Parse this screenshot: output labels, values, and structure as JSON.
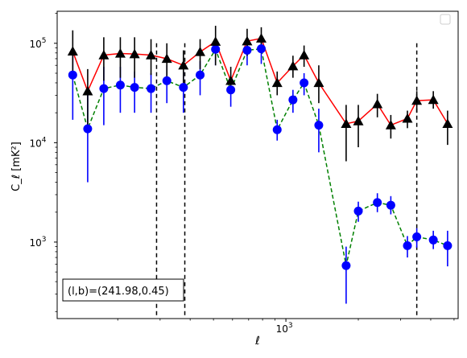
{
  "chart_data": {
    "type": "scatter",
    "title": "",
    "xlabel": "ℓ",
    "ylabel": "C_ℓ  [mK²]",
    "xscale": "log",
    "yscale": "log",
    "xlim": [
      112,
      5200
    ],
    "ylim": [
      170,
      210000
    ],
    "x_major_ticks": [
      {
        "value": 1000,
        "base": "10",
        "exp": "3"
      }
    ],
    "y_major_ticks": [
      {
        "value": 1000,
        "base": "10",
        "exp": "3"
      },
      {
        "value": 10000,
        "base": "10",
        "exp": "4"
      },
      {
        "value": 100000,
        "base": "10",
        "exp": "5"
      }
    ],
    "legend": {
      "location": "top-right",
      "entries": []
    },
    "vlines": [
      {
        "x": 290,
        "style": "dashed",
        "color": "#000000"
      },
      {
        "x": 380,
        "style": "dashed",
        "color": "#000000"
      },
      {
        "x": 3500,
        "style": "dashed",
        "color": "#000000"
      }
    ],
    "annotation": {
      "text": "(l,b)=(241.98,0.45)",
      "location": "bottom-left"
    },
    "series": [
      {
        "marker": "triangle",
        "color": "#000000",
        "line_color": "#ff0000",
        "line_style": "solid",
        "errorbar_color": "#000000",
        "points": [
          {
            "x": 130,
            "y": 83000,
            "ylo": 45000,
            "yhi": 135000
          },
          {
            "x": 150,
            "y": 33000,
            "ylo": 15000,
            "yhi": 55000
          },
          {
            "x": 175,
            "y": 76000,
            "ylo": 42000,
            "yhi": 115000
          },
          {
            "x": 205,
            "y": 79000,
            "ylo": 45000,
            "yhi": 115000
          },
          {
            "x": 235,
            "y": 78000,
            "ylo": 45000,
            "yhi": 115000
          },
          {
            "x": 275,
            "y": 76000,
            "ylo": 48000,
            "yhi": 110000
          },
          {
            "x": 320,
            "y": 70000,
            "ylo": 45000,
            "yhi": 100000
          },
          {
            "x": 375,
            "y": 60000,
            "ylo": 40000,
            "yhi": 85000
          },
          {
            "x": 440,
            "y": 82000,
            "ylo": 55000,
            "yhi": 110000
          },
          {
            "x": 510,
            "y": 104000,
            "ylo": 60000,
            "yhi": 150000
          },
          {
            "x": 590,
            "y": 42000,
            "ylo": 32000,
            "yhi": 58000
          },
          {
            "x": 690,
            "y": 105000,
            "ylo": 75000,
            "yhi": 140000
          },
          {
            "x": 790,
            "y": 112000,
            "ylo": 82000,
            "yhi": 145000
          },
          {
            "x": 920,
            "y": 40000,
            "ylo": 30000,
            "yhi": 52000
          },
          {
            "x": 1070,
            "y": 59000,
            "ylo": 45000,
            "yhi": 75000
          },
          {
            "x": 1190,
            "y": 76000,
            "ylo": 58000,
            "yhi": 95000
          },
          {
            "x": 1370,
            "y": 40000,
            "ylo": 25000,
            "yhi": 60000
          },
          {
            "x": 1780,
            "y": 15500,
            "ylo": 6500,
            "yhi": 24000
          },
          {
            "x": 2000,
            "y": 16500,
            "ylo": 9000,
            "yhi": 24000
          },
          {
            "x": 2400,
            "y": 24500,
            "ylo": 18000,
            "yhi": 31000
          },
          {
            "x": 2730,
            "y": 15000,
            "ylo": 11000,
            "yhi": 19000
          },
          {
            "x": 3200,
            "y": 17500,
            "ylo": 14000,
            "yhi": 21000
          },
          {
            "x": 3500,
            "y": 26500,
            "ylo": 20000,
            "yhi": 33000
          },
          {
            "x": 4100,
            "y": 27000,
            "ylo": 22000,
            "yhi": 33000
          },
          {
            "x": 4700,
            "y": 15500,
            "ylo": 9500,
            "yhi": 21000
          }
        ]
      },
      {
        "marker": "circle",
        "color": "#0000ff",
        "line_color": "#008000",
        "line_style": "dashed",
        "errorbar_color": "#0000ff",
        "points": [
          {
            "x": 130,
            "y": 48000,
            "ylo": 17000,
            "yhi": 80000
          },
          {
            "x": 150,
            "y": 13800,
            "ylo": 4000,
            "yhi": 32000
          },
          {
            "x": 175,
            "y": 35000,
            "ylo": 15000,
            "yhi": 58000
          },
          {
            "x": 205,
            "y": 38000,
            "ylo": 20000,
            "yhi": 58000
          },
          {
            "x": 235,
            "y": 36000,
            "ylo": 20000,
            "yhi": 52000
          },
          {
            "x": 275,
            "y": 35000,
            "ylo": 20000,
            "yhi": 50000
          },
          {
            "x": 320,
            "y": 42000,
            "ylo": 25000,
            "yhi": 60000
          },
          {
            "x": 375,
            "y": 36000,
            "ylo": 20000,
            "yhi": 52000
          },
          {
            "x": 440,
            "y": 48000,
            "ylo": 30000,
            "yhi": 66000
          },
          {
            "x": 510,
            "y": 87000,
            "ylo": 60000,
            "yhi": 115000
          },
          {
            "x": 590,
            "y": 34000,
            "ylo": 23000,
            "yhi": 48000
          },
          {
            "x": 690,
            "y": 85000,
            "ylo": 60000,
            "yhi": 110000
          },
          {
            "x": 790,
            "y": 88000,
            "ylo": 62000,
            "yhi": 110000
          },
          {
            "x": 920,
            "y": 13500,
            "ylo": 10500,
            "yhi": 17000
          },
          {
            "x": 1070,
            "y": 27000,
            "ylo": 20000,
            "yhi": 34000
          },
          {
            "x": 1190,
            "y": 40000,
            "ylo": 30000,
            "yhi": 50000
          },
          {
            "x": 1370,
            "y": 15000,
            "ylo": 8000,
            "yhi": 22000
          },
          {
            "x": 1780,
            "y": 580,
            "ylo": 240,
            "yhi": 900
          },
          {
            "x": 2000,
            "y": 2050,
            "ylo": 1600,
            "yhi": 2550
          },
          {
            "x": 2400,
            "y": 2500,
            "ylo": 2000,
            "yhi": 3100
          },
          {
            "x": 2730,
            "y": 2350,
            "ylo": 1900,
            "yhi": 2900
          },
          {
            "x": 3200,
            "y": 920,
            "ylo": 700,
            "yhi": 1150
          },
          {
            "x": 3500,
            "y": 1130,
            "ylo": 880,
            "yhi": 1380
          },
          {
            "x": 4100,
            "y": 1050,
            "ylo": 850,
            "yhi": 1300
          },
          {
            "x": 4700,
            "y": 920,
            "ylo": 570,
            "yhi": 1300
          }
        ]
      }
    ]
  }
}
